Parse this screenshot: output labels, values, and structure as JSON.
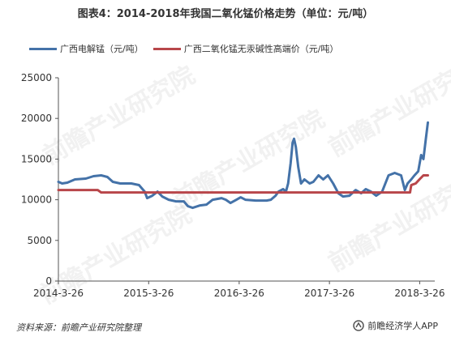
{
  "title": "图表4：2014-2018年我国二氧化锰价格走势（单位：元/吨）",
  "footer": {
    "source": "资料来源：前瞻产业研究院整理",
    "brand": "前瞻经济学人APP"
  },
  "watermark": "前瞻产业研究院",
  "colors": {
    "series1": "#4472a8",
    "series2": "#b8464a",
    "axis": "#555555",
    "text": "#333333"
  },
  "chart_data": {
    "type": "line",
    "title": "图表4：2014-2018年我国二氧化锰价格走势（单位：元/吨）",
    "xlabel": "",
    "ylabel": "",
    "ylim": [
      0,
      25000
    ],
    "xlim": [
      "2014-3-26",
      "2018-5-26"
    ],
    "yticks": [
      "0",
      "5000",
      "10000",
      "15000",
      "20000",
      "25000"
    ],
    "xticks": [
      "2014-3-26",
      "2015-3-26",
      "2016-3-26",
      "2017-3-26",
      "2018-3-26"
    ],
    "grid": false,
    "legend_position": "top",
    "series": [
      {
        "name": "广西电解锰（元/吨）",
        "points": [
          [
            "2014-03-26",
            12200
          ],
          [
            "2014-04-10",
            12000
          ],
          [
            "2014-05-01",
            12100
          ],
          [
            "2014-06-01",
            12500
          ],
          [
            "2014-07-15",
            12600
          ],
          [
            "2014-08-15",
            12900
          ],
          [
            "2014-09-15",
            13000
          ],
          [
            "2014-10-10",
            12800
          ],
          [
            "2014-11-01",
            12200
          ],
          [
            "2014-12-01",
            12000
          ],
          [
            "2015-01-15",
            12000
          ],
          [
            "2015-02-15",
            11800
          ],
          [
            "2015-03-10",
            11000
          ],
          [
            "2015-03-20",
            10200
          ],
          [
            "2015-04-10",
            10500
          ],
          [
            "2015-05-01",
            11000
          ],
          [
            "2015-05-20",
            10400
          ],
          [
            "2015-06-15",
            10000
          ],
          [
            "2015-07-15",
            9800
          ],
          [
            "2015-08-15",
            9800
          ],
          [
            "2015-09-01",
            9200
          ],
          [
            "2015-09-20",
            9000
          ],
          [
            "2015-10-20",
            9300
          ],
          [
            "2015-11-15",
            9400
          ],
          [
            "2015-12-10",
            10000
          ],
          [
            "2016-01-15",
            10200
          ],
          [
            "2016-02-01",
            10000
          ],
          [
            "2016-02-20",
            9600
          ],
          [
            "2016-03-15",
            10000
          ],
          [
            "2016-04-01",
            10300
          ],
          [
            "2016-04-20",
            10000
          ],
          [
            "2016-06-01",
            9900
          ],
          [
            "2016-07-15",
            9900
          ],
          [
            "2016-08-01",
            10000
          ],
          [
            "2016-08-20",
            10500
          ],
          [
            "2016-09-01",
            11000
          ],
          [
            "2016-09-20",
            11300
          ],
          [
            "2016-10-01",
            11000
          ],
          [
            "2016-10-10",
            12000
          ],
          [
            "2016-10-20",
            14500
          ],
          [
            "2016-10-28",
            17000
          ],
          [
            "2016-11-03",
            17500
          ],
          [
            "2016-11-10",
            16500
          ],
          [
            "2016-11-20",
            14000
          ],
          [
            "2016-12-01",
            12000
          ],
          [
            "2016-12-15",
            12500
          ],
          [
            "2017-01-05",
            12000
          ],
          [
            "2017-01-20",
            12200
          ],
          [
            "2017-02-10",
            13000
          ],
          [
            "2017-03-01",
            12500
          ],
          [
            "2017-03-20",
            13000
          ],
          [
            "2017-04-10",
            12000
          ],
          [
            "2017-05-01",
            10800
          ],
          [
            "2017-05-20",
            10400
          ],
          [
            "2017-06-15",
            10500
          ],
          [
            "2017-07-10",
            11200
          ],
          [
            "2017-08-01",
            10800
          ],
          [
            "2017-08-20",
            11300
          ],
          [
            "2017-09-10",
            11000
          ],
          [
            "2017-10-01",
            10500
          ],
          [
            "2017-10-25",
            11000
          ],
          [
            "2017-11-20",
            13000
          ],
          [
            "2017-12-15",
            13300
          ],
          [
            "2018-01-10",
            13000
          ],
          [
            "2018-01-25",
            11200
          ],
          [
            "2018-02-05",
            12000
          ],
          [
            "2018-02-20",
            12500
          ],
          [
            "2018-03-05",
            13000
          ],
          [
            "2018-03-20",
            13500
          ],
          [
            "2018-04-01",
            15500
          ],
          [
            "2018-04-10",
            15000
          ],
          [
            "2018-04-20",
            17500
          ],
          [
            "2018-04-28",
            19500
          ]
        ]
      },
      {
        "name": "广西二氧化锰无汞碱性高端价（元/吨）",
        "points": [
          [
            "2014-03-26",
            11200
          ],
          [
            "2014-09-01",
            11200
          ],
          [
            "2014-09-15",
            10900
          ],
          [
            "2015-12-15",
            10900
          ],
          [
            "2017-12-10",
            10900
          ],
          [
            "2018-02-15",
            10900
          ],
          [
            "2018-02-20",
            11800
          ],
          [
            "2018-03-10",
            12000
          ],
          [
            "2018-03-25",
            12500
          ],
          [
            "2018-04-10",
            13000
          ],
          [
            "2018-04-28",
            13000
          ]
        ]
      }
    ]
  }
}
